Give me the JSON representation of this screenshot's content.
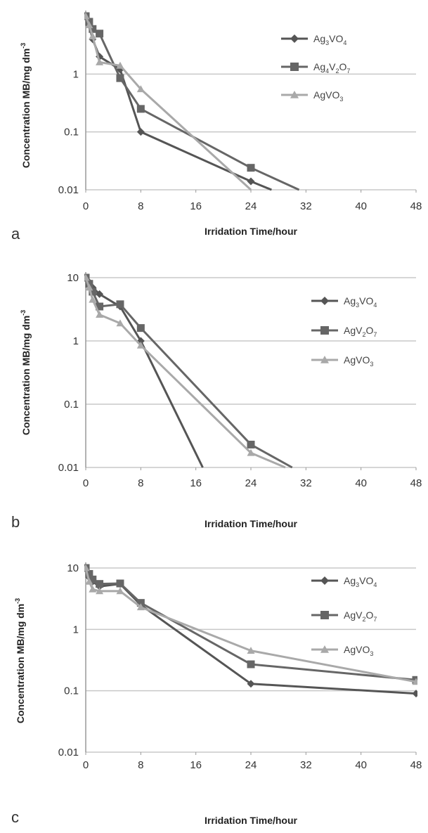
{
  "colors": {
    "series": [
      "#555555",
      "#666666",
      "#a9a9a9"
    ],
    "grid": "#c8c8c8",
    "axis": "#999999"
  },
  "chart_data": [
    {
      "panel": "a",
      "type": "line",
      "ylog": true,
      "xlabel": "Irridation Time/hour",
      "ylabel": "Concentration MB/mg dm",
      "ylabel_sup": "-3",
      "xlim": [
        0,
        48
      ],
      "ylim": [
        0.01,
        10
      ],
      "xticks": [
        "0",
        "8",
        "16",
        "24",
        "32",
        "40",
        "48"
      ],
      "yticks": [
        "0.01",
        "0.1",
        "1"
      ],
      "grid": true,
      "legend_position": "top-right",
      "series": [
        {
          "name": "Ag3VO4",
          "label_parts": [
            "Ag",
            "3",
            "VO",
            "4"
          ],
          "marker": "diamond",
          "x": [
            0,
            0.5,
            1,
            2,
            5,
            8,
            24,
            27
          ],
          "y": [
            10,
            7,
            4,
            2,
            1.2,
            0.1,
            0.014,
            0.01
          ]
        },
        {
          "name": "Ag4V2O7",
          "label_parts": [
            "Ag",
            "4",
            "V",
            "2",
            "O",
            "7"
          ],
          "marker": "square",
          "x": [
            0,
            0.5,
            1,
            2,
            5,
            8,
            24,
            31
          ],
          "y": [
            10,
            8,
            6,
            5,
            0.85,
            0.25,
            0.024,
            0.01
          ]
        },
        {
          "name": "AgVO3",
          "label_parts": [
            "AgVO",
            "3"
          ],
          "marker": "triangle",
          "x": [
            0,
            0.5,
            1,
            2,
            5,
            8,
            24
          ],
          "y": [
            10,
            7,
            4.5,
            1.6,
            1.4,
            0.55,
            0.01
          ]
        }
      ]
    },
    {
      "panel": "b",
      "type": "line",
      "ylog": true,
      "xlabel": "Irridation Time/hour",
      "ylabel": "Concentration MB/mg dm",
      "ylabel_sup": "-3",
      "xlim": [
        0,
        48
      ],
      "ylim": [
        0.01,
        10
      ],
      "xticks": [
        "0",
        "8",
        "16",
        "24",
        "32",
        "40",
        "48"
      ],
      "yticks": [
        "0.01",
        "0.1",
        "1",
        "10"
      ],
      "grid": true,
      "legend_position": "top-right",
      "series": [
        {
          "name": "Ag3VO4",
          "label_parts": [
            "Ag",
            "3",
            "VO",
            "4"
          ],
          "marker": "diamond",
          "x": [
            0,
            0.5,
            1,
            2,
            5,
            8,
            17
          ],
          "y": [
            10,
            8.5,
            7,
            5.5,
            3.5,
            1,
            0.01
          ]
        },
        {
          "name": "AgV2O7",
          "label_parts": [
            "AgV",
            "2",
            "O",
            "7"
          ],
          "marker": "square",
          "x": [
            0,
            0.5,
            1,
            2,
            5,
            8,
            24,
            30
          ],
          "y": [
            10,
            8,
            6,
            3.5,
            3.8,
            1.6,
            0.023,
            0.01
          ]
        },
        {
          "name": "AgVO3",
          "label_parts": [
            "AgVO",
            "3"
          ],
          "marker": "triangle",
          "x": [
            0,
            0.5,
            1,
            2,
            5,
            8,
            24,
            29
          ],
          "y": [
            10,
            7,
            4.5,
            2.6,
            1.9,
            0.85,
            0.017,
            0.01
          ]
        }
      ]
    },
    {
      "panel": "c",
      "type": "line",
      "ylog": true,
      "xlabel": "Irridation Time/hour",
      "ylabel": "Concentration MB/mg dm",
      "ylabel_sup": "-3",
      "xlim": [
        0,
        48
      ],
      "ylim": [
        0.01,
        10
      ],
      "xticks": [
        "0",
        "8",
        "16",
        "24",
        "32",
        "40",
        "48"
      ],
      "yticks": [
        "0.01",
        "0.1",
        "1",
        "10"
      ],
      "grid": true,
      "legend_position": "top-right",
      "series": [
        {
          "name": "Ag3VO4",
          "label_parts": [
            "Ag",
            "3",
            "VO",
            "4"
          ],
          "marker": "diamond",
          "x": [
            0,
            0.5,
            1,
            2,
            5,
            8,
            24,
            48
          ],
          "y": [
            10,
            7,
            6,
            5,
            5.5,
            2.5,
            0.13,
            0.09
          ]
        },
        {
          "name": "AgV2O7",
          "label_parts": [
            "AgV",
            "2",
            "O",
            "7"
          ],
          "marker": "square",
          "x": [
            0,
            0.5,
            1,
            2,
            5,
            8,
            24,
            48
          ],
          "y": [
            10,
            8,
            6.5,
            5.5,
            5.6,
            2.7,
            0.27,
            0.15
          ]
        },
        {
          "name": "AgVO3",
          "label_parts": [
            "AgVO",
            "3"
          ],
          "marker": "triangle",
          "x": [
            0,
            0.5,
            1,
            2,
            5,
            8,
            24,
            48
          ],
          "y": [
            10,
            6,
            4.5,
            4.2,
            4.2,
            2.3,
            0.45,
            0.14
          ]
        }
      ]
    }
  ]
}
